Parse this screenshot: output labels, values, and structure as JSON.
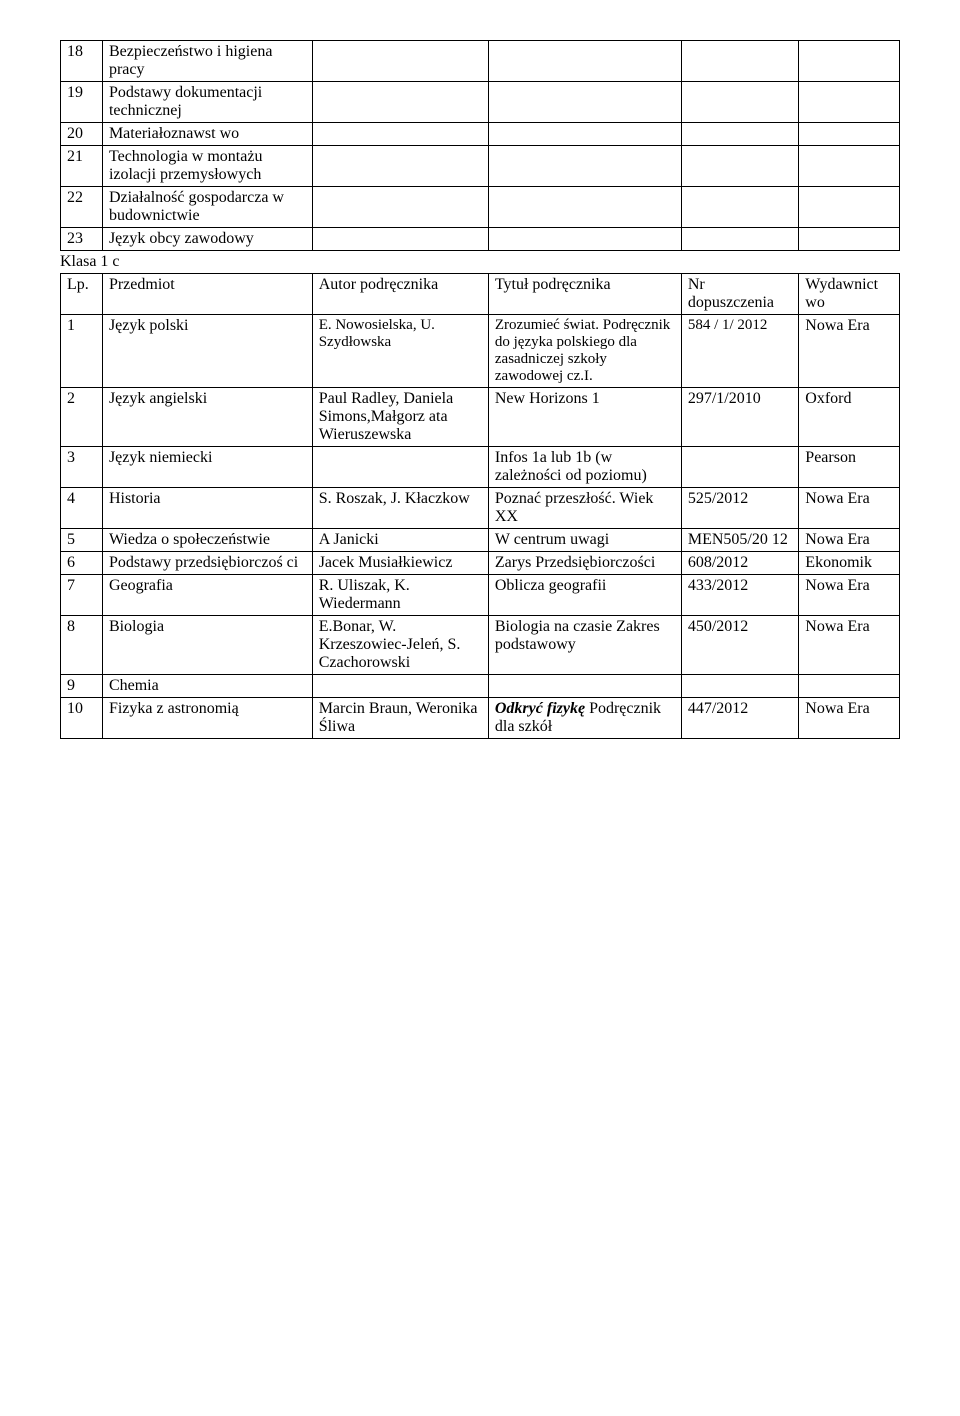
{
  "table1": {
    "rows": [
      {
        "num": "18",
        "subj": "Bezpieczeństwo i higiena pracy"
      },
      {
        "num": "19",
        "subj": "Podstawy dokumentacji technicznej"
      },
      {
        "num": "20",
        "subj": "Materiałoznawst wo"
      },
      {
        "num": "21",
        "subj": "Technologia w montażu izolacji przemysłowych"
      },
      {
        "num": "22",
        "subj": "Działalność gospodarcza w budownictwie"
      },
      {
        "num": "23",
        "subj": "Język obcy zawodowy"
      }
    ]
  },
  "section_label": "Klasa 1 c",
  "table2": {
    "header": {
      "num": "Lp.",
      "subj": "Przedmiot",
      "auth": "Autor podręcznika",
      "title": "Tytuł podręcznika",
      "appr": "Nr dopuszczenia",
      "pub": "Wydawnict wo"
    },
    "rows": [
      {
        "num": "1",
        "subj": "Język polski",
        "auth": "E. Nowosielska, U. Szydłowska",
        "title": "Zrozumieć świat. Podręcznik do języka polskiego dla zasadniczej szkoły zawodowej cz.I.",
        "appr": "584 / 1/ 2012",
        "pub": "Nowa Era",
        "auth_small": true,
        "title_small": true,
        "appr_small": true
      },
      {
        "num": "2",
        "subj": "Język angielski",
        "auth": "Paul Radley, Daniela Simons,Małgorz ata Wieruszewska",
        "title": "New Horizons 1",
        "appr": "297/1/2010",
        "pub": "Oxford"
      },
      {
        "num": "3",
        "subj": "Język niemiecki",
        "auth": "",
        "title": "Infos 1a lub 1b (w zależności od poziomu)",
        "appr": "",
        "pub": "Pearson"
      },
      {
        "num": "4",
        "subj": "Historia",
        "auth": "S. Roszak, J. Kłaczkow",
        "title": "Poznać przeszłość. Wiek XX",
        "appr": "525/2012",
        "pub": "Nowa Era"
      },
      {
        "num": "5",
        "subj": "Wiedza o społeczeństwie",
        "auth": "A Janicki",
        "title": "W centrum uwagi",
        "appr": "MEN505/20 12",
        "pub": "Nowa Era"
      },
      {
        "num": "6",
        "subj": "Podstawy przedsiębiorczoś ci",
        "auth": "Jacek Musiałkiewicz",
        "title": "Zarys Przedsiębiorczości",
        "appr": "608/2012",
        "pub": "Ekonomik"
      },
      {
        "num": "7",
        "subj": "Geografia",
        "auth": "R. Uliszak, K. Wiedermann",
        "title": "Oblicza geografii",
        "appr": "433/2012",
        "pub": "Nowa Era"
      },
      {
        "num": "8",
        "subj": "Biologia",
        "auth": "E.Bonar, W. Krzeszowiec-Jeleń, S. Czachorowski",
        "title": "Biologia na czasie Zakres podstawowy",
        "appr": "450/2012",
        "pub": "Nowa Era"
      },
      {
        "num": "9",
        "subj": "Chemia",
        "auth": "",
        "title": "",
        "appr": "",
        "pub": ""
      },
      {
        "num": "10",
        "subj": "Fizyka z astronomią",
        "auth": "Marcin Braun, Weronika Śliwa",
        "title_pre_italic": "Odkryć fizykę",
        "title_post": " Podręcznik dla szkół",
        "appr": "447/2012",
        "pub": "Nowa Era"
      }
    ]
  }
}
